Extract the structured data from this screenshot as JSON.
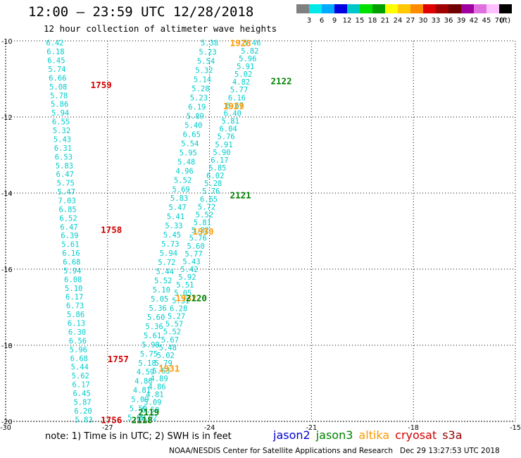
{
  "title": "12:00 – 23:59 UTC 12/28/2018",
  "subtitle": "12 hour collection of altimeter wave heights",
  "note": "note: 1) Time is in UTC; 2) SWH is in feet",
  "credit": "NOAA/NESDIS Center for Satellite Applications and Research   Dec 29 13:27:53 UTC 2018",
  "colorbar": {
    "unit": "(ft)",
    "colors": [
      "#808080",
      "#00e8e8",
      "#00aaff",
      "#0000e0",
      "#00c8c8",
      "#00e000",
      "#00a000",
      "#ffff00",
      "#ffc800",
      "#ff8c00",
      "#e00000",
      "#a00000",
      "#700000",
      "#a000a0",
      "#e070e0",
      "#ffc0ff",
      "#000000"
    ],
    "labels": [
      "3",
      "6",
      "9",
      "12",
      "15",
      "18",
      "21",
      "24",
      "27",
      "30",
      "33",
      "36",
      "39",
      "42",
      "45",
      "70"
    ]
  },
  "legend": [
    {
      "label": "jason2",
      "color": "#0000d0"
    },
    {
      "label": "jason3",
      "color": "#008000"
    },
    {
      "label": "altika",
      "color": "#ff9900"
    },
    {
      "label": "cryosat",
      "color": "#d00000"
    },
    {
      "label": "s3a",
      "color": "#900000"
    }
  ],
  "chart_data": {
    "type": "scatter",
    "xlim": [
      -30,
      -15
    ],
    "ylim": [
      -20,
      -10
    ],
    "xticks": [
      -30,
      -27,
      -24,
      -21,
      -18,
      -15
    ],
    "yticks": [
      -10,
      -12,
      -14,
      -16,
      -18,
      -20
    ],
    "grid": true,
    "value_color": "#00cccc",
    "tracks": [
      {
        "start": [
          -28.55,
          -10.05
        ],
        "end": [
          -27.7,
          -19.95
        ],
        "values": [
          "6.42",
          "6.18",
          "6.45",
          "5.74",
          "6.66",
          "5.08",
          "5.78",
          "5.86",
          "5.94",
          "6.55",
          "5.32",
          "5.43",
          "6.31",
          "6.53",
          "5.83",
          "6.47",
          "5.75",
          "5.47",
          "7.03",
          "6.85",
          "6.52",
          "6.47",
          "6.39",
          "5.61",
          "6.16",
          "6.68",
          "5.94",
          "6.08",
          "5.10",
          "6.17",
          "6.73",
          "5.86",
          "6.13",
          "6.30",
          "6.56",
          "5.96",
          "6.68",
          "5.44",
          "5.62",
          "6.17",
          "6.45",
          "5.87",
          "6.20",
          "5.83"
        ]
      },
      {
        "start": [
          -24.0,
          -10.05
        ],
        "end": [
          -26.15,
          -19.9
        ],
        "values": [
          "5.38",
          "5.23",
          "5.54",
          "5.32",
          "5.14",
          "5.28",
          "5.23",
          "6.19",
          "5.89",
          "5.40",
          "6.65",
          "5.54",
          "5.95",
          "5.48",
          "4.96",
          "5.52",
          "5.69",
          "5.83",
          "5.47",
          "5.41",
          "5.33",
          "5.45",
          "5.73",
          "5.94",
          "5.72",
          "5.44",
          "5.52",
          "5.10",
          "5.05",
          "5.36",
          "5.60",
          "5.36",
          "5.61",
          "5.98",
          "5.75",
          "5.18",
          "4.59",
          "4.86",
          "4.81",
          "5.09",
          "5.59",
          "5.60"
        ]
      },
      {
        "start": [
          -22.75,
          -10.05
        ],
        "end": [
          -25.8,
          -19.9
        ],
        "values": [
          "5.46",
          "5.82",
          "5.96",
          "5.91",
          "5.02",
          "4.82",
          "5.77",
          "6.16",
          "6.67",
          "6.40",
          "5.81",
          "6.04",
          "5.76",
          "5.91",
          "5.90",
          "6.17",
          "5.85",
          "6.02",
          "5.28",
          "5.76",
          "6.65",
          "5.72",
          "5.52",
          "5.81",
          "5.82",
          "5.76",
          "5.60",
          "5.77",
          "5.43",
          "5.42",
          "5.92",
          "5.51",
          "5.05",
          "5.31",
          "6.28",
          "5.27",
          "5.57",
          "5.52",
          "5.67",
          "5.48",
          "5.02",
          "5.79",
          "5.63",
          "4.89",
          "4.86",
          "4.81",
          "5.09",
          "5.59",
          "5.02"
        ]
      }
    ],
    "pass_labels": [
      {
        "text": "1759",
        "x": -27.5,
        "y": -11.15,
        "satellite": "cryosat"
      },
      {
        "text": "1758",
        "x": -27.2,
        "y": -14.95,
        "satellite": "cryosat"
      },
      {
        "text": "1757",
        "x": -27.0,
        "y": -18.35,
        "satellite": "cryosat"
      },
      {
        "text": "1756",
        "x": -27.2,
        "y": -19.95,
        "satellite": "cryosat"
      },
      {
        "text": "1928",
        "x": -23.4,
        "y": -10.05,
        "satellite": "altika"
      },
      {
        "text": "1929",
        "x": -23.6,
        "y": -11.7,
        "satellite": "altika"
      },
      {
        "text": "1930",
        "x": -24.5,
        "y": -15.0,
        "satellite": "altika"
      },
      {
        "text": "1931",
        "x": -25.5,
        "y": -18.6,
        "satellite": "altika"
      },
      {
        "text": "1932",
        "x": -25.0,
        "y": -16.75,
        "satellite": "altika"
      },
      {
        "text": "2122",
        "x": -22.2,
        "y": -11.05,
        "satellite": "jason3"
      },
      {
        "text": "2121",
        "x": -23.4,
        "y": -14.05,
        "satellite": "jason3"
      },
      {
        "text": "2120",
        "x": -24.7,
        "y": -16.75,
        "satellite": "jason3"
      },
      {
        "text": "2119",
        "x": -26.1,
        "y": -19.75,
        "satellite": "jason3"
      },
      {
        "text": "2118",
        "x": -26.3,
        "y": -19.95,
        "satellite": "jason3"
      }
    ]
  }
}
